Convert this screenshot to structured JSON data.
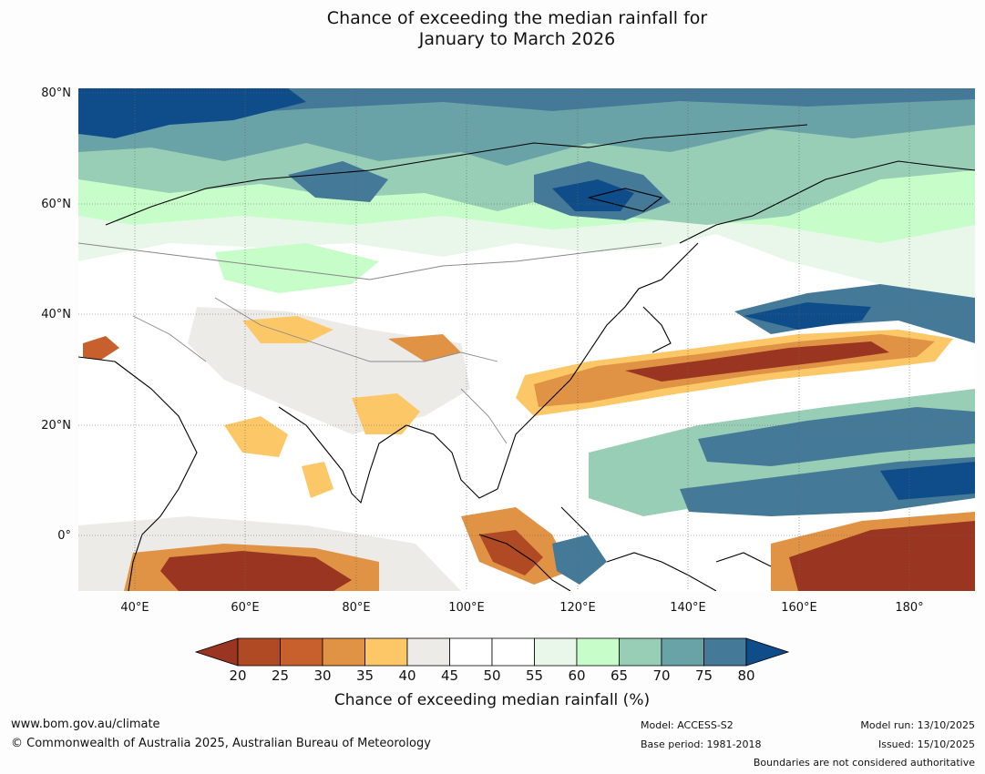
{
  "title": {
    "line1": "Chance of exceeding the median rainfall for",
    "line2": "January to March 2026"
  },
  "map": {
    "lat_labels": [
      "80°N",
      "60°N",
      "40°N",
      "20°N",
      "0°"
    ],
    "lon_labels": [
      "40°E",
      "60°E",
      "80°E",
      "100°E",
      "120°E",
      "140°E",
      "160°E",
      "180°"
    ]
  },
  "colorbar": {
    "ticks": [
      "20",
      "25",
      "30",
      "35",
      "40",
      "45",
      "50",
      "55",
      "60",
      "65",
      "70",
      "75",
      "80"
    ],
    "colors": [
      "#993520",
      "#b04a24",
      "#c8602e",
      "#e09245",
      "#fcc766",
      "#ecebe7",
      "#ffffff",
      "#ffffff",
      "#e9f7ea",
      "#c7fdc9",
      "#98cdb6",
      "#6aa3a7",
      "#457998",
      "#0f4d8a"
    ],
    "label": "Chance of exceeding median rainfall (%)"
  },
  "footer": {
    "website": "www.bom.gov.au/climate",
    "copyright": "© Commonwealth of Australia 2025, Australian Bureau of Meteorology",
    "model": "Model: ACCESS-S2",
    "base_period": "Base period: 1981-2018",
    "model_run": "Model run: 13/10/2025",
    "issued": "Issued: 15/10/2025",
    "boundaries": "Boundaries are not considered authoritative"
  }
}
